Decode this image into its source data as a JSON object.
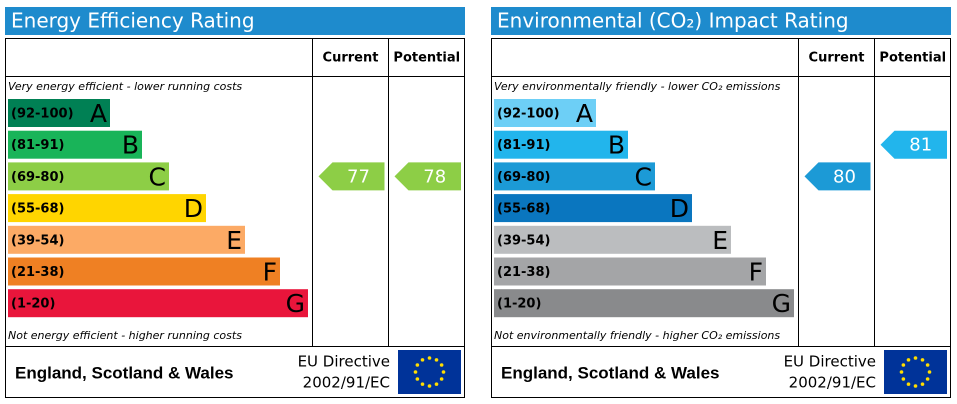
{
  "panels": [
    {
      "title": "Energy Efficiency Rating",
      "headers": {
        "current": "Current",
        "potential": "Potential"
      },
      "top_note": "Very energy efficient - lower running costs",
      "bottom_note": "Not energy efficient - higher running costs",
      "bands": [
        {
          "range": "(92-100)",
          "letter": "A",
          "color": "#008054"
        },
        {
          "range": "(81-91)",
          "letter": "B",
          "color": "#19b459"
        },
        {
          "range": "(69-80)",
          "letter": "C",
          "color": "#8dce46"
        },
        {
          "range": "(55-68)",
          "letter": "D",
          "color": "#ffd500"
        },
        {
          "range": "(39-54)",
          "letter": "E",
          "color": "#fcaa65"
        },
        {
          "range": "(21-38)",
          "letter": "F",
          "color": "#ef8023"
        },
        {
          "range": "(1-20)",
          "letter": "G",
          "color": "#e9153b"
        }
      ],
      "current": 77,
      "potential": 78,
      "footer": {
        "region": "England, Scotland & Wales",
        "directive": "EU Directive",
        "directive_code": "2002/91/EC"
      }
    },
    {
      "title": "Environmental (CO₂) Impact Rating",
      "headers": {
        "current": "Current",
        "potential": "Potential"
      },
      "top_note": "Very environmentally friendly - lower CO₂ emissions",
      "bottom_note": "Not environmentally friendly - higher CO₂ emissions",
      "bands": [
        {
          "range": "(92-100)",
          "letter": "A",
          "color": "#6dcff6"
        },
        {
          "range": "(81-91)",
          "letter": "B",
          "color": "#22b5ec"
        },
        {
          "range": "(69-80)",
          "letter": "C",
          "color": "#1c9ad6"
        },
        {
          "range": "(55-68)",
          "letter": "D",
          "color": "#0a76bf"
        },
        {
          "range": "(39-54)",
          "letter": "E",
          "color": "#bbbdbf"
        },
        {
          "range": "(21-38)",
          "letter": "F",
          "color": "#a4a5a7"
        },
        {
          "range": "(1-20)",
          "letter": "G",
          "color": "#898a8c"
        }
      ],
      "current": 80,
      "potential": 81,
      "footer": {
        "region": "England, Scotland & Wales",
        "directive": "EU Directive",
        "directive_code": "2002/91/EC"
      }
    }
  ]
}
